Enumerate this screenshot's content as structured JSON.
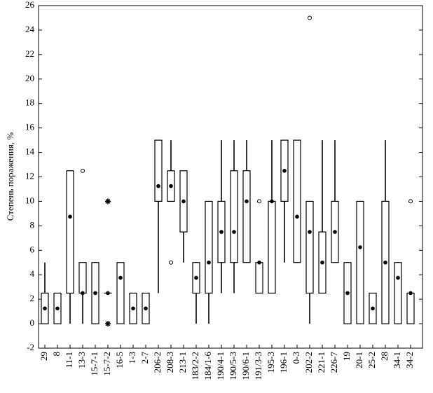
{
  "chart_data": {
    "type": "box",
    "ylabel": "Степень поражения, %",
    "categories": [
      "29",
      "8",
      "11-1",
      "13-3",
      "15-7-1",
      "15-7-2",
      "16-5",
      "1-3",
      "2-7",
      "206-2",
      "208-3",
      "213-1",
      "183/2-2",
      "184/1-6",
      "190/4-1",
      "190/5-3",
      "190/6-1",
      "191/3-3",
      "195-3",
      "196-1",
      "0-3",
      "202-2",
      "221-1",
      "226-7",
      "19",
      "20-1",
      "25-2",
      "28",
      "34-1",
      "34-2"
    ],
    "median": [
      1.25,
      1.25,
      8.75,
      2.5,
      2.5,
      2.5,
      3.75,
      1.25,
      1.25,
      11.25,
      11.25,
      10,
      3.75,
      5,
      7.5,
      7.5,
      10,
      5,
      10,
      12.5,
      8.75,
      7.5,
      5,
      7.5,
      2.5,
      6.25,
      1.25,
      5,
      3.75,
      2.5
    ],
    "q1": [
      0,
      0,
      2.5,
      2.5,
      0,
      2.5,
      0,
      0,
      0,
      10,
      10,
      7.5,
      2.5,
      2.5,
      5,
      5,
      5,
      2.5,
      2.5,
      10,
      5,
      2.5,
      2.5,
      5,
      0,
      0,
      0,
      0,
      0,
      0
    ],
    "q3": [
      2.5,
      2.5,
      12.5,
      5,
      5,
      2.5,
      5,
      2.5,
      2.5,
      15,
      12.5,
      12.5,
      5,
      10,
      10,
      12.5,
      12.5,
      5,
      10,
      15,
      15,
      10,
      7.5,
      10,
      5,
      10,
      2.5,
      10,
      5,
      2.5
    ],
    "whisker_low": [
      0,
      0,
      0,
      0,
      0,
      2.5,
      0,
      0,
      0,
      2.5,
      10,
      5,
      0,
      0,
      2.5,
      2.5,
      5,
      2.5,
      2.5,
      5,
      5,
      0,
      2.5,
      5,
      0,
      0,
      0,
      0,
      0,
      0
    ],
    "whisker_high": [
      5,
      2.5,
      12.5,
      5,
      5,
      2.5,
      5,
      2.5,
      2.5,
      15,
      15,
      12.5,
      5,
      10,
      15,
      15,
      15,
      5,
      15,
      15,
      15,
      10,
      15,
      15,
      5,
      10,
      2.5,
      15,
      5,
      2.5
    ],
    "outliers": [
      [],
      [],
      [],
      [
        12.5
      ],
      [],
      [],
      [],
      [],
      [],
      [],
      [
        5
      ],
      [],
      [],
      [],
      [],
      [],
      [],
      [
        10
      ],
      [],
      [],
      [],
      [
        25
      ],
      [],
      [],
      [],
      [],
      [],
      [],
      [],
      [
        10
      ]
    ],
    "extremes": [
      [],
      [],
      [],
      [],
      [],
      [
        10,
        0
      ],
      [],
      [],
      [],
      [],
      [],
      [],
      [],
      [],
      [],
      [],
      [],
      [],
      [],
      [],
      [],
      [],
      [],
      [],
      [],
      [],
      [],
      [],
      [],
      []
    ],
    "ylim": [
      -2,
      26
    ],
    "yticks": [
      -2,
      0,
      2,
      4,
      6,
      8,
      10,
      12,
      14,
      16,
      18,
      20,
      22,
      24,
      26
    ],
    "color": "#000000"
  }
}
